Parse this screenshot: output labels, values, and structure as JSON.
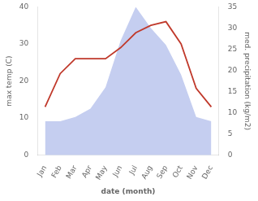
{
  "chart_data": {
    "type": "line",
    "xlabel": "date (month)",
    "ylabel": "max temp (C)",
    "y2label": "med. precipitation (kg/m2)",
    "categories": [
      "Jan",
      "Feb",
      "Mar",
      "Apr",
      "May",
      "Jun",
      "Jul",
      "Aug",
      "Sep",
      "Oct",
      "Nov",
      "Dec"
    ],
    "series": [
      {
        "type": "area",
        "color": "#c5cef0",
        "axis": "y2",
        "values": [
          8,
          8,
          9,
          11,
          16,
          27,
          35,
          30,
          26,
          19,
          9,
          8
        ]
      },
      {
        "type": "line",
        "color": "#c0392b",
        "values": [
          13,
          22,
          26,
          26,
          26,
          29,
          33,
          35,
          36,
          30,
          18,
          13
        ]
      }
    ],
    "ylim": [
      0,
      40
    ],
    "yticks": [
      0,
      10,
      20,
      30,
      40
    ],
    "y2lim": [
      0,
      35
    ],
    "y2ticks": [
      0,
      5,
      10,
      15,
      20,
      25,
      30,
      35
    ],
    "grid": false
  }
}
